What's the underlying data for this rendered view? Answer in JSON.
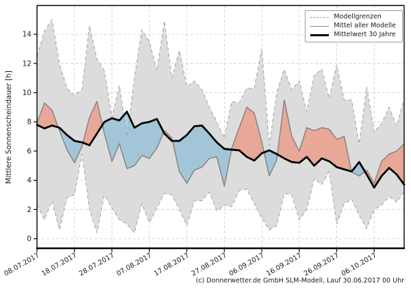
{
  "figure": {
    "footer": "(c) Donnerwetter.de GmbH SLM-Modell, Lauf 30.06.2017 00 Uhr",
    "legend": [
      "Modellgrenzen",
      "Mittel aller Modelle",
      "Mittelwert 30 Jahre"
    ]
  },
  "chart_data": {
    "type": "line",
    "title": "",
    "xlabel": "",
    "ylabel": "Mittlere Sonnenscheindauer [h]",
    "grid": true,
    "legend_position": "upper right",
    "ylim": [
      -0.7,
      16
    ],
    "y_ticks": [
      0,
      2,
      4,
      6,
      8,
      10,
      12,
      14
    ],
    "x_range_days": [
      0,
      98
    ],
    "x_tick_days": [
      0,
      10,
      20,
      30,
      40,
      50,
      60,
      70,
      80,
      90
    ],
    "x_tick_labels": [
      "08.07.2017",
      "18.07.2017",
      "28.07.2017",
      "07.08.2017",
      "17.08.2017",
      "27.08.2017",
      "06.09.2017",
      "16.09.2017",
      "26.09.2017",
      "06.10.2017"
    ],
    "days": [
      0,
      2,
      4,
      6,
      8,
      10,
      12,
      14,
      16,
      18,
      20,
      22,
      24,
      26,
      28,
      30,
      32,
      34,
      36,
      38,
      40,
      42,
      44,
      46,
      48,
      50,
      52,
      54,
      56,
      58,
      60,
      62,
      64,
      66,
      68,
      70,
      72,
      74,
      76,
      78,
      80,
      82,
      84,
      86,
      88,
      90,
      92,
      94,
      96,
      98
    ],
    "series": [
      {
        "name": "Modellgrenzen (Maximum)",
        "style": "dashed-bound",
        "values": [
          12.5,
          14.2,
          15.0,
          12.0,
          10.3,
          9.8,
          10.2,
          14.6,
          12.3,
          11.5,
          8.3,
          10.5,
          7.0,
          11.0,
          14.3,
          13.5,
          11.5,
          14.9,
          11.0,
          12.9,
          10.4,
          10.8,
          10.2,
          9.0,
          8.0,
          6.9,
          9.4,
          9.3,
          10.3,
          10.3,
          13.0,
          6.4,
          10.0,
          11.6,
          10.2,
          10.8,
          8.7,
          11.2,
          11.6,
          9.6,
          11.9,
          9.5,
          9.5,
          6.5,
          10.4,
          7.3,
          7.9,
          9.0,
          7.7,
          9.6
        ]
      },
      {
        "name": "Modellgrenzen (Minimum)",
        "style": "dashed-bound",
        "values": [
          2.3,
          1.3,
          2.6,
          0.6,
          2.8,
          3.0,
          5.8,
          2.0,
          0.4,
          3.0,
          2.1,
          1.3,
          1.0,
          0.4,
          2.4,
          1.1,
          2.1,
          3.1,
          3.0,
          2.0,
          0.9,
          2.6,
          2.6,
          3.2,
          1.9,
          2.3,
          2.2,
          3.3,
          3.4,
          2.4,
          1.4,
          0.6,
          0.9,
          3.1,
          3.0,
          1.3,
          2.0,
          4.1,
          3.7,
          4.6,
          1.0,
          2.4,
          2.7,
          1.6,
          0.7,
          2.0,
          2.3,
          2.9,
          2.5,
          3.2
        ]
      },
      {
        "name": "Mittel aller Modelle",
        "style": "solid-gray",
        "values": [
          7.9,
          9.3,
          8.8,
          7.4,
          6.1,
          5.2,
          6.3,
          8.3,
          9.4,
          7.2,
          5.3,
          6.5,
          4.8,
          5.0,
          5.7,
          5.5,
          6.2,
          7.4,
          6.9,
          4.6,
          3.8,
          4.7,
          4.9,
          5.5,
          5.6,
          3.6,
          6.2,
          7.6,
          9.0,
          8.6,
          6.6,
          4.3,
          5.4,
          9.5,
          7.0,
          6.0,
          7.6,
          7.4,
          7.6,
          7.5,
          6.8,
          7.0,
          4.55,
          4.3,
          4.7,
          3.8,
          5.3,
          5.8,
          6.0,
          6.5
        ]
      },
      {
        "name": "Mittelwert 30 Jahre",
        "style": "solid-black-thick",
        "values": [
          7.8,
          7.55,
          7.75,
          7.6,
          7.1,
          6.7,
          6.6,
          6.4,
          7.2,
          8.0,
          8.25,
          8.1,
          8.7,
          7.6,
          7.9,
          8.0,
          8.2,
          7.2,
          6.7,
          6.7,
          7.1,
          7.7,
          7.75,
          7.2,
          6.6,
          6.15,
          6.1,
          6.05,
          5.6,
          5.35,
          5.85,
          6.05,
          5.8,
          5.5,
          5.25,
          5.2,
          5.6,
          5.0,
          5.5,
          5.3,
          4.9,
          4.75,
          4.6,
          5.25,
          4.4,
          3.5,
          4.3,
          4.85,
          4.4,
          3.7
        ]
      }
    ],
    "fills": {
      "band_between": [
        "Modellgrenzen (Maximum)",
        "Modellgrenzen (Minimum)"
      ],
      "above_normal_between": [
        "Mittel aller Modelle",
        "Mittelwert 30 Jahre"
      ],
      "below_normal_between": [
        "Mittel aller Modelle",
        "Mittelwert 30 Jahre"
      ]
    },
    "colors": {
      "band_fill": "#dcdcdc",
      "band_outline": "#a0a0a0",
      "model_mean_line": "#878787",
      "climate_mean_line": "#000000",
      "above_normal_fill": "rgba(238,148,125,0.72)",
      "below_normal_fill": "rgba(140,190,215,0.72)",
      "gridline": "#c9c9c9",
      "spine": "#000000"
    }
  }
}
